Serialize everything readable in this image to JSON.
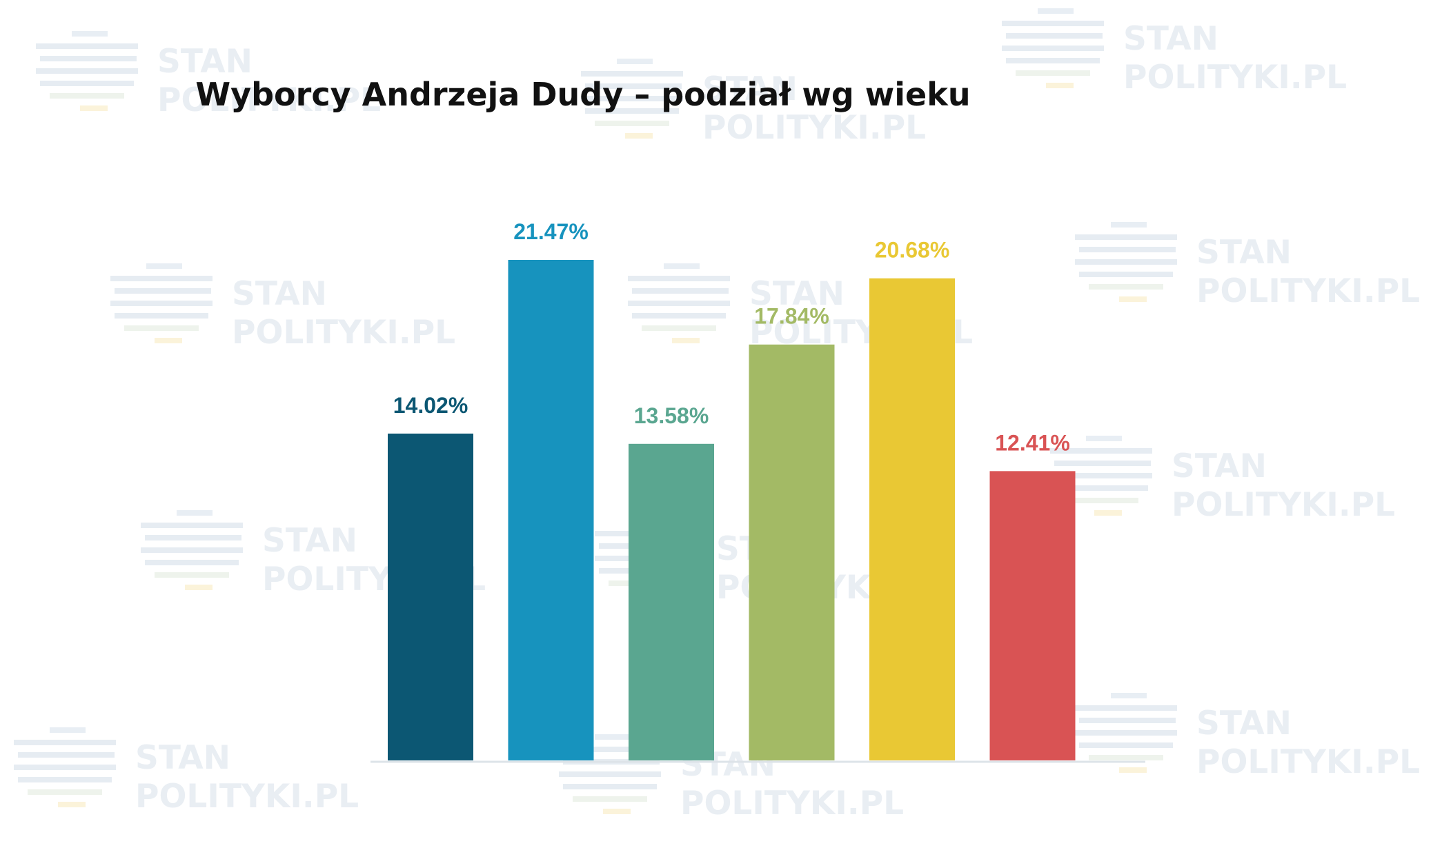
{
  "chart_data": {
    "type": "bar",
    "title": "Wyborcy Andrzeja Dudy – podział wg wieku",
    "xlabel": "",
    "ylabel": "",
    "ylim": [
      0,
      25
    ],
    "grid": false,
    "legend": "none",
    "categories": [
      "",
      "",
      "",
      "",
      "",
      ""
    ],
    "values": [
      14.02,
      21.47,
      13.58,
      17.84,
      20.68,
      12.41
    ],
    "value_labels": [
      "14.02%",
      "21.47%",
      "13.58%",
      "17.84%",
      "20.68%",
      "12.41%"
    ],
    "colors": [
      "#0c5773",
      "#1793be",
      "#5aa690",
      "#a3ba65",
      "#e9c834",
      "#d95354"
    ]
  },
  "watermark": {
    "line1": "STAN",
    "line2": "POLITYKI.PL"
  }
}
